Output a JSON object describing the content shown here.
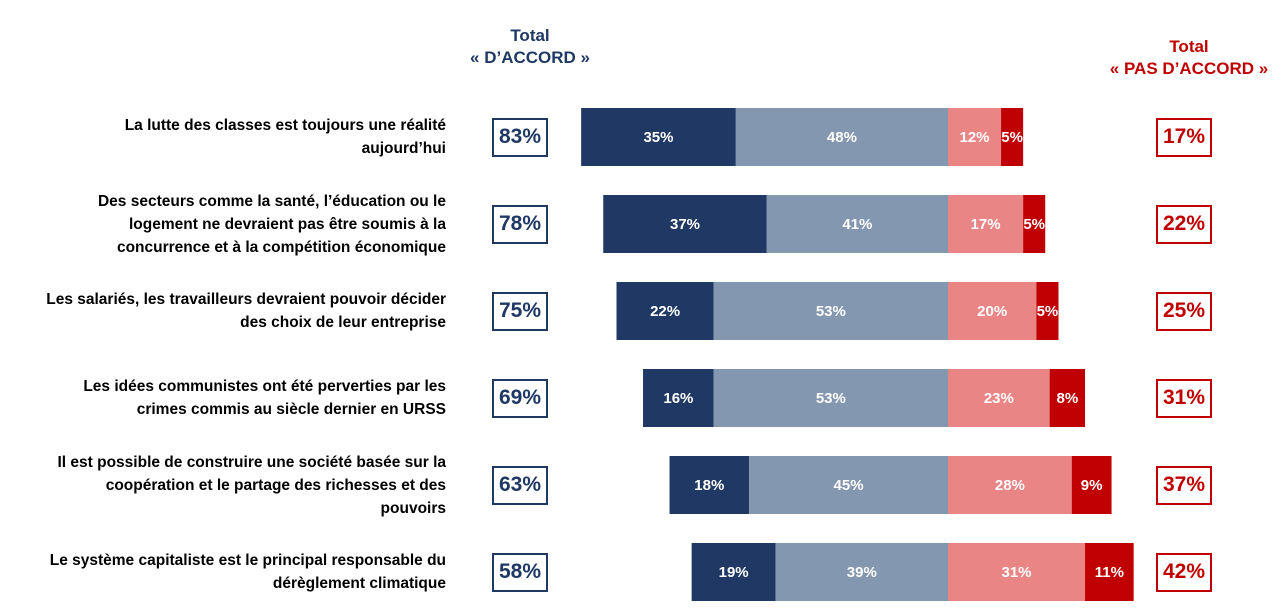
{
  "header": {
    "agree_line1": "Total",
    "agree_line2": "« D’ACCORD »",
    "disagree_line1": "Total",
    "disagree_line2": "« PAS D’ACCORD »"
  },
  "colors": {
    "tout_a_fait_d_accord": "#1f3864",
    "plutot_d_accord": "#8497b0",
    "plutot_pas_d_accord": "#e98585",
    "pas_du_tout_d_accord": "#c00000",
    "header_agree": "#1f3864",
    "header_disagree": "#c00000"
  },
  "chart_data": {
    "type": "bar",
    "orientation": "horizontal",
    "stacked": "diverging",
    "title": "",
    "xlabel": "",
    "ylabel": "",
    "legend": "none",
    "grid": false,
    "categories": [
      "La lutte des classes est toujours une réalité aujourd’hui",
      "Des secteurs comme la santé, l’éducation ou le logement ne devraient pas être soumis à la concurrence et à la compétition économique",
      "Les salariés, les travailleurs devraient pouvoir décider des choix de leur entreprise",
      "Les idées communistes ont été perverties par les crimes commis au siècle dernier en URSS",
      "Il est possible de construire une société basée sur la coopération et le partage des richesses et des pouvoirs",
      "Le système capitaliste est le principal responsable du dérèglement climatique"
    ],
    "category_lines": [
      [
        "La lutte des classes est toujours une réalité",
        "aujourd’hui"
      ],
      [
        "Des secteurs comme la santé, l’éducation ou le",
        "logement ne devraient pas être soumis à la",
        "concurrence et à la compétition économique"
      ],
      [
        "Les salariés, les travailleurs devraient pouvoir décider",
        "des choix de leur entreprise"
      ],
      [
        "Les idées communistes ont été perverties par les",
        "crimes commis au siècle dernier en URSS"
      ],
      [
        "Il est possible de construire une société basée sur la",
        "coopération et le partage des richesses et des",
        "pouvoirs"
      ],
      [
        "Le système capitaliste est le principal responsable du",
        "dérèglement climatique"
      ]
    ],
    "series": [
      {
        "values": [
          35,
          37,
          22,
          16,
          18,
          19
        ],
        "labels": [
          "35%",
          "37%",
          "22%",
          "16%",
          "18%",
          "19%"
        ]
      },
      {
        "values": [
          48,
          41,
          53,
          53,
          45,
          39
        ],
        "labels": [
          "48%",
          "41%",
          "53%",
          "53%",
          "45%",
          "39%"
        ]
      },
      {
        "values": [
          12,
          17,
          20,
          23,
          28,
          31
        ],
        "labels": [
          "12%",
          "17%",
          "20%",
          "23%",
          "28%",
          "31%"
        ]
      },
      {
        "values": [
          5,
          5,
          5,
          8,
          9,
          11
        ],
        "labels": [
          "5%",
          "5%",
          "5%",
          "8%",
          "9%",
          "11%"
        ]
      }
    ],
    "total_agree": [
      "83%",
      "78%",
      "75%",
      "69%",
      "63%",
      "58%"
    ],
    "total_disagree": [
      "17%",
      "22%",
      "25%",
      "31%",
      "37%",
      "42%"
    ]
  }
}
